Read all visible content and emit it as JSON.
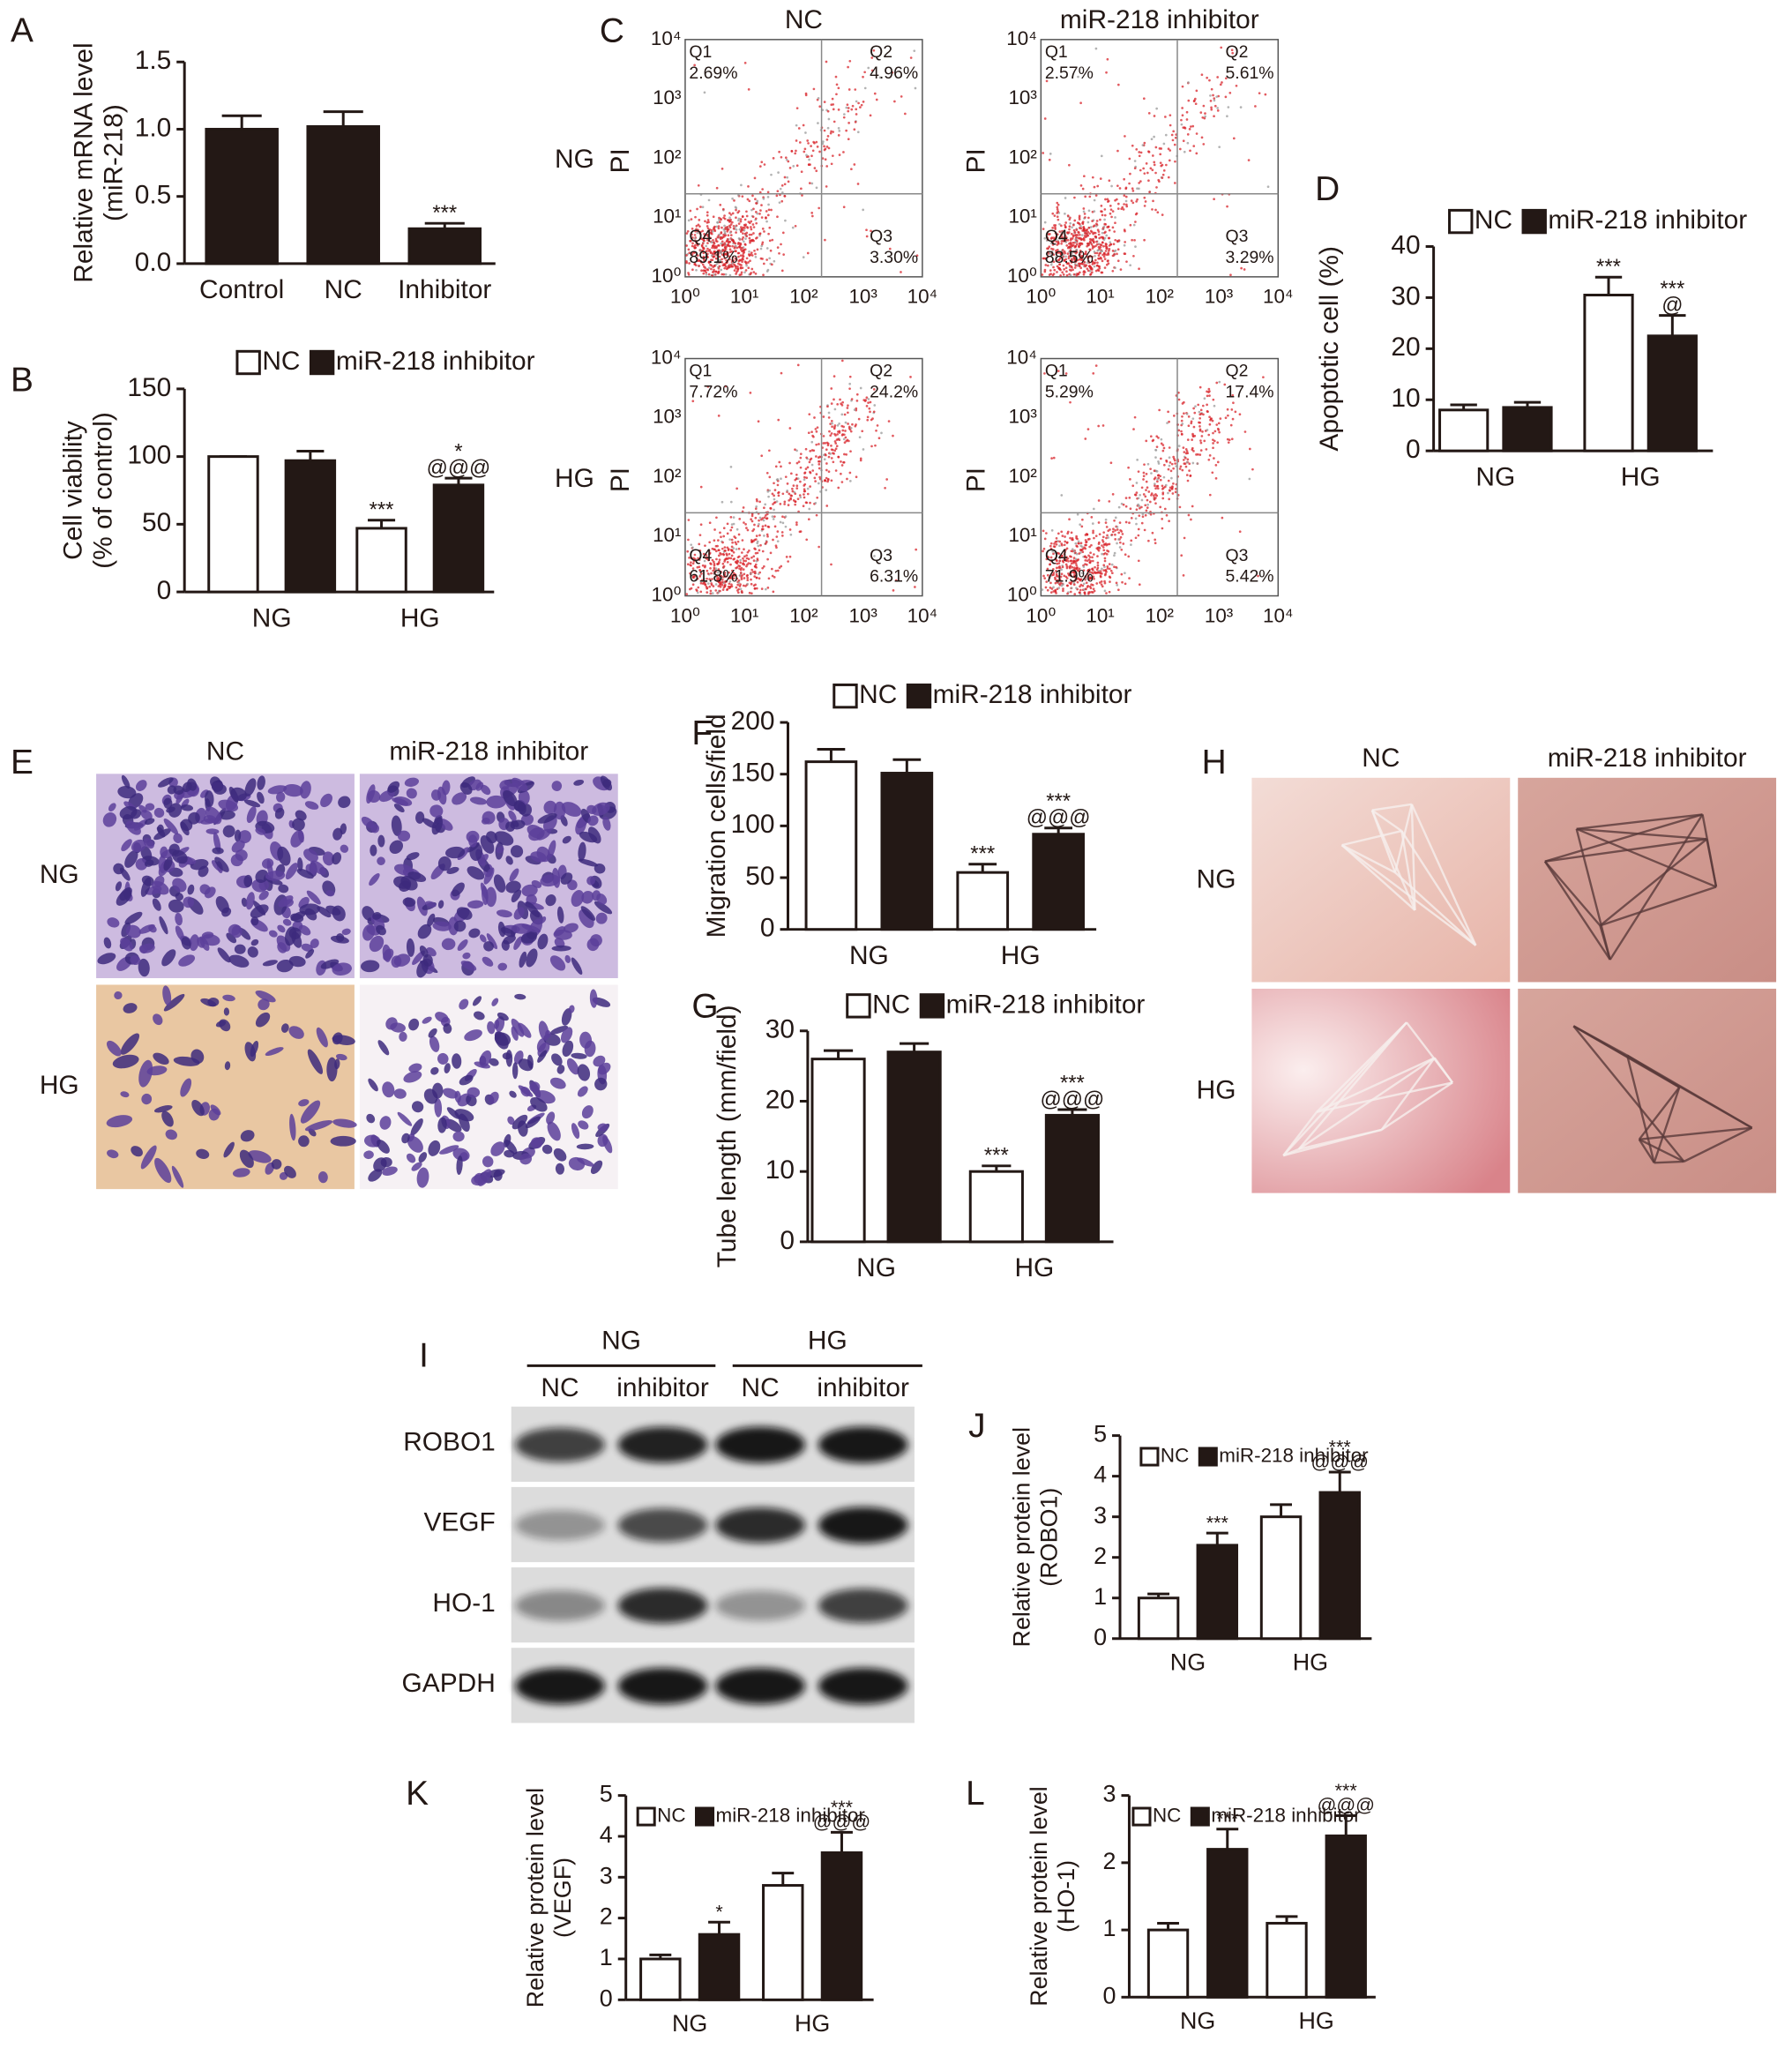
{
  "chart_data": [
    {
      "type": "bar",
      "panel": "A",
      "ylabel": [
        "Relative mRNA level",
        "(miR-218)"
      ],
      "categories": [
        "Control",
        "NC",
        "Inhibitor"
      ],
      "values": [
        1.0,
        1.02,
        0.26
      ],
      "errors": [
        0.1,
        0.11,
        0.04
      ],
      "annotations": [
        null,
        null,
        [
          "***"
        ]
      ],
      "color": "#231815",
      "ylim": [
        0,
        1.5
      ],
      "yticks": [
        {
          "value": 0,
          "label": "0.0"
        },
        0.5,
        {
          "value": 1,
          "label": "1.0"
        },
        1.5
      ]
    },
    {
      "type": "bar",
      "panel": "B",
      "ylabel": [
        "Cell viability",
        "(% of control)"
      ],
      "categories": [
        "NG",
        "HG"
      ],
      "series": [
        {
          "name": "NC",
          "color": "#ffffff",
          "values": [
            100,
            47
          ],
          "errors": [
            0,
            6
          ],
          "annotations": [
            null,
            [
              "***"
            ]
          ]
        },
        {
          "name": "miR-218 inhibitor",
          "color": "#231815",
          "values": [
            97,
            79
          ],
          "errors": [
            7,
            5
          ],
          "annotations": [
            null,
            [
              "*",
              "@@@"
            ]
          ]
        }
      ],
      "ylim": [
        0,
        150
      ],
      "yticks": [
        0,
        50,
        100,
        150
      ]
    },
    {
      "type": "bar",
      "panel": "D",
      "ylabel": [
        "Apoptotic cell (%)"
      ],
      "categories": [
        "NG",
        "HG"
      ],
      "series": [
        {
          "name": "NC",
          "color": "#ffffff",
          "values": [
            8,
            30.5
          ],
          "errors": [
            1,
            3.5
          ],
          "annotations": [
            null,
            [
              "***"
            ]
          ]
        },
        {
          "name": "miR-218 inhibitor",
          "color": "#231815",
          "values": [
            8.5,
            22.5
          ],
          "errors": [
            1,
            4
          ],
          "annotations": [
            null,
            [
              "***",
              "@"
            ]
          ]
        }
      ],
      "ylim": [
        0,
        40
      ],
      "yticks": [
        0,
        10,
        20,
        30,
        40
      ]
    },
    {
      "type": "bar",
      "panel": "F",
      "ylabel": [
        "Migration cells/field"
      ],
      "categories": [
        "NG",
        "HG"
      ],
      "series": [
        {
          "name": "NC",
          "color": "#ffffff",
          "values": [
            162,
            55
          ],
          "errors": [
            12,
            8
          ],
          "annotations": [
            null,
            [
              "***"
            ]
          ]
        },
        {
          "name": "miR-218 inhibitor",
          "color": "#231815",
          "values": [
            151,
            92
          ],
          "errors": [
            13,
            6
          ],
          "annotations": [
            null,
            [
              "***",
              "@@@"
            ]
          ]
        }
      ],
      "ylim": [
        0,
        200
      ],
      "yticks": [
        0,
        50,
        100,
        150,
        200
      ]
    },
    {
      "type": "bar",
      "panel": "G",
      "ylabel": [
        "Tube length (mm/field)"
      ],
      "categories": [
        "NG",
        "HG"
      ],
      "series": [
        {
          "name": "NC",
          "color": "#ffffff",
          "values": [
            26,
            10
          ],
          "errors": [
            1.2,
            0.8
          ],
          "annotations": [
            null,
            [
              "***"
            ]
          ]
        },
        {
          "name": "miR-218 inhibitor",
          "color": "#231815",
          "values": [
            27,
            18
          ],
          "errors": [
            1.2,
            0.8
          ],
          "annotations": [
            null,
            [
              "***",
              "@@@"
            ]
          ]
        }
      ],
      "ylim": [
        0,
        30
      ],
      "yticks": [
        0,
        10,
        20,
        30
      ]
    },
    {
      "type": "bar",
      "panel": "J",
      "ylabel": [
        "Relative protein level",
        "(ROBO1)"
      ],
      "categories": [
        "NG",
        "HG"
      ],
      "series": [
        {
          "name": "NC",
          "color": "#ffffff",
          "values": [
            1,
            3
          ],
          "errors": [
            0.1,
            0.3
          ],
          "annotations": [
            null,
            null
          ]
        },
        {
          "name": "miR-218 inhibitor",
          "color": "#231815",
          "values": [
            2.3,
            3.6
          ],
          "errors": [
            0.3,
            0.5
          ],
          "annotations": [
            [
              "***"
            ],
            [
              "***",
              "@@@"
            ]
          ]
        }
      ],
      "ylim": [
        0,
        5
      ],
      "yticks": [
        0,
        1,
        2,
        3,
        4,
        5
      ]
    },
    {
      "type": "bar",
      "panel": "K",
      "ylabel": [
        "Relative protein level",
        "(VEGF)"
      ],
      "categories": [
        "NG",
        "HG"
      ],
      "series": [
        {
          "name": "NC",
          "color": "#ffffff",
          "values": [
            1,
            2.8
          ],
          "errors": [
            0.1,
            0.3
          ],
          "annotations": [
            null,
            null
          ]
        },
        {
          "name": "miR-218 inhibitor",
          "color": "#231815",
          "values": [
            1.6,
            3.6
          ],
          "errors": [
            0.3,
            0.5
          ],
          "annotations": [
            [
              "*"
            ],
            [
              "***",
              "@@@"
            ]
          ]
        }
      ],
      "ylim": [
        0,
        5
      ],
      "yticks": [
        0,
        1,
        2,
        3,
        4,
        5
      ]
    },
    {
      "type": "bar",
      "panel": "L",
      "ylabel": [
        "Relative protein level",
        "(HO-1)"
      ],
      "categories": [
        "NG",
        "HG"
      ],
      "series": [
        {
          "name": "NC",
          "color": "#ffffff",
          "values": [
            1,
            1.1
          ],
          "errors": [
            0.1,
            0.1
          ],
          "annotations": [
            null,
            null
          ]
        },
        {
          "name": "miR-218 inhibitor",
          "color": "#231815",
          "values": [
            2.2,
            2.4
          ],
          "errors": [
            0.3,
            0.3
          ],
          "annotations": [
            [
              "***"
            ],
            [
              "***",
              "@@@"
            ]
          ]
        }
      ],
      "ylim": [
        0,
        3
      ],
      "yticks": [
        0,
        1,
        2,
        3
      ]
    }
  ],
  "flow_cytometry": {
    "panel": "C",
    "columns": [
      "NC",
      "miR-218 inhibitor"
    ],
    "rows": [
      "NG",
      "HG"
    ],
    "axis_label": "PI",
    "axis_ticks": [
      "10⁰",
      "10¹",
      "10²",
      "10³",
      "10⁴"
    ],
    "plots": [
      [
        {
          "quadrants": [
            {
              "name": "Q1",
              "percent": "2.69%"
            },
            {
              "name": "Q2",
              "percent": "4.96%"
            },
            {
              "name": "Q3",
              "percent": "3.30%"
            },
            {
              "name": "Q4",
              "percent": "89.1%"
            }
          ]
        },
        {
          "quadrants": [
            {
              "name": "Q1",
              "percent": "2.57%"
            },
            {
              "name": "Q2",
              "percent": "5.61%"
            },
            {
              "name": "Q3",
              "percent": "3.29%"
            },
            {
              "name": "Q4",
              "percent": "88.5%"
            }
          ]
        }
      ],
      [
        {
          "quadrants": [
            {
              "name": "Q1",
              "percent": "7.72%"
            },
            {
              "name": "Q2",
              "percent": "24.2%"
            },
            {
              "name": "Q3",
              "percent": "6.31%"
            },
            {
              "name": "Q4",
              "percent": "61.8%"
            }
          ]
        },
        {
          "quadrants": [
            {
              "name": "Q1",
              "percent": "5.29%"
            },
            {
              "name": "Q2",
              "percent": "17.4%"
            },
            {
              "name": "Q3",
              "percent": "5.42%"
            },
            {
              "name": "Q4",
              "percent": "71.9%"
            }
          ]
        }
      ]
    ]
  },
  "migration_images": {
    "panel": "E",
    "columns": [
      "NC",
      "miR-218 inhibitor"
    ],
    "rows": [
      "NG",
      "HG"
    ]
  },
  "tube_images": {
    "panel": "H",
    "columns": [
      "NC",
      "miR-218 inhibitor"
    ],
    "rows": [
      "NG",
      "HG"
    ]
  },
  "western_blot": {
    "panel": "I",
    "groups": [
      "NG",
      "HG"
    ],
    "lanes": [
      "NC",
      "inhibitor",
      "NC",
      "inhibitor"
    ],
    "proteins": [
      "ROBO1",
      "VEGF",
      "HO-1",
      "GAPDH"
    ]
  }
}
